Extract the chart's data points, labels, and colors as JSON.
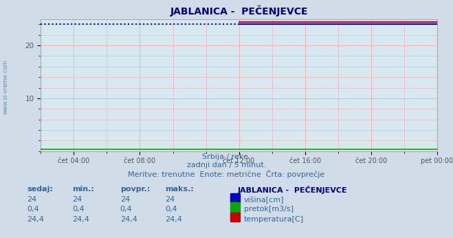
{
  "title": "JABLANICA -  PEČENJEVCE",
  "title_color": "#000080",
  "bg_color": "#d0dce8",
  "plot_bg_color": "#d8e8f0",
  "grid_color": "#f0aaaa",
  "xlim_min": 0,
  "xlim_max": 288,
  "ylim_min": 0,
  "ylim_max": 25,
  "yticks": [
    10,
    20
  ],
  "xtick_positions": [
    24,
    72,
    144,
    192,
    240,
    288
  ],
  "xtick_labels": [
    "čet 04:00",
    "čet 08:00",
    "čet 12:00",
    "čet 16:00",
    "čet 20:00",
    "pet 00:00"
  ],
  "line_visina_value": 24,
  "line_visina_color": "#0000cc",
  "line_pretok_value": 0.4,
  "line_pretok_color": "#00aa00",
  "line_temp_value": 24.4,
  "line_temp_color": "#cc0000",
  "visina_dotted_end": 144,
  "subtitle1": "Srbija / reke.",
  "subtitle2": "zadnji dan / 5 minut.",
  "subtitle3": "Meritve: trenutne  Enote: metrične  Črta: povprečje",
  "subtitle_color": "#336699",
  "legend_title": "JABLANICA -  PEČENJEVCE",
  "legend_title_color": "#000080",
  "legend_items": [
    {
      "label": "višina[cm]",
      "color": "#0000cc"
    },
    {
      "label": "pretok[m3/s]",
      "color": "#00aa00"
    },
    {
      "label": "temperatura[C]",
      "color": "#cc0000"
    }
  ],
  "table_headers": [
    "sedaj:",
    "min.:",
    "povpr.:",
    "maks.:"
  ],
  "table_data": [
    [
      "24",
      "24",
      "24",
      "24"
    ],
    [
      "0,4",
      "0,4",
      "0,4",
      "0,4"
    ],
    [
      "24,4",
      "24,4",
      "24,4",
      "24,4"
    ]
  ],
  "table_color": "#336699",
  "watermark_text": "www.si-vreme.com",
  "watermark_color": "#4488bb"
}
